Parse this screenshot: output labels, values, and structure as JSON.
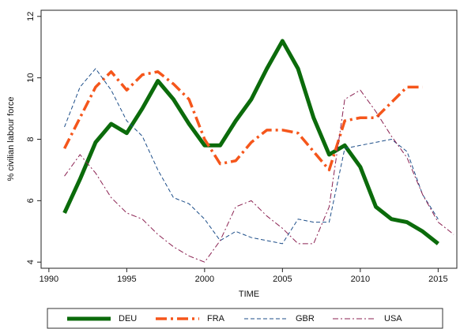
{
  "chart_data": {
    "type": "line",
    "x_label": "TIME",
    "y_label": "% civilian labour force",
    "x": [
      1991,
      1992,
      1993,
      1994,
      1995,
      1996,
      1997,
      1998,
      1999,
      2000,
      2001,
      2002,
      2003,
      2004,
      2005,
      2006,
      2007,
      2008,
      2009,
      2010,
      2011,
      2012,
      2013,
      2014,
      2015,
      2016
    ],
    "xlim": [
      1989.5,
      2016.2
    ],
    "xticks": [
      1990,
      1995,
      2000,
      2005,
      2010,
      2015
    ],
    "ylim": [
      3.8,
      12.2
    ],
    "yticks": [
      4,
      6,
      8,
      10,
      12
    ],
    "grid": false,
    "legend": "bottom",
    "series": [
      {
        "name": "DEU",
        "color": "#0b6b0b",
        "values": [
          5.6,
          6.7,
          7.9,
          8.5,
          8.2,
          9.0,
          9.9,
          9.3,
          8.5,
          7.8,
          7.8,
          8.6,
          9.3,
          10.3,
          11.2,
          10.3,
          8.7,
          7.5,
          7.8,
          7.1,
          5.8,
          5.4,
          5.3,
          5.0,
          4.6,
          null
        ]
      },
      {
        "name": "FRA",
        "color": "#f5561b",
        "values": [
          7.7,
          8.7,
          9.7,
          10.2,
          9.6,
          10.1,
          10.2,
          9.8,
          9.3,
          8.0,
          7.2,
          7.3,
          7.9,
          8.3,
          8.3,
          8.2,
          7.6,
          7.0,
          8.6,
          8.7,
          8.7,
          9.2,
          9.7,
          9.7,
          null,
          null
        ]
      },
      {
        "name": "GBR",
        "color": "#1d4e89",
        "values": [
          8.4,
          9.7,
          10.3,
          9.6,
          8.6,
          8.1,
          7.0,
          6.1,
          5.9,
          5.4,
          4.7,
          5.0,
          4.8,
          4.7,
          4.6,
          5.4,
          5.3,
          5.3,
          7.7,
          7.8,
          7.9,
          8.0,
          7.6,
          6.2,
          5.4,
          null
        ]
      },
      {
        "name": "USA",
        "color": "#8b2252",
        "values": [
          6.8,
          7.5,
          6.9,
          6.1,
          5.6,
          5.4,
          4.9,
          4.5,
          4.2,
          4.0,
          4.7,
          5.8,
          6.0,
          5.5,
          5.1,
          4.6,
          4.6,
          5.8,
          9.3,
          9.6,
          8.9,
          8.1,
          7.4,
          6.2,
          5.3,
          4.9
        ]
      }
    ]
  }
}
